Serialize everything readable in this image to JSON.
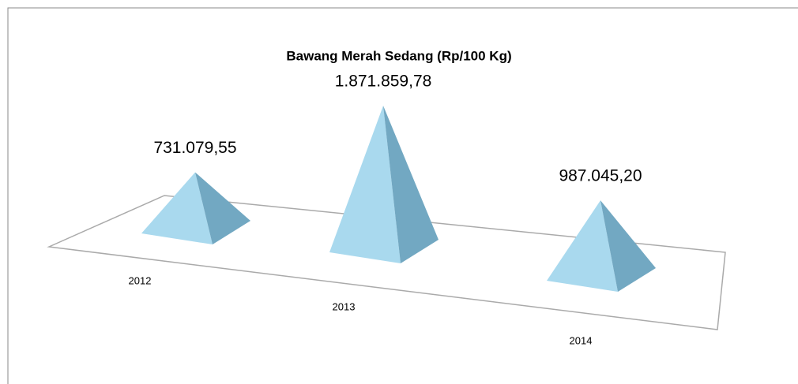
{
  "chart_data": {
    "type": "pyramid",
    "title": "Bawang Merah Sedang (Rp/100 Kg)",
    "categories": [
      "2012",
      "2013",
      "2014"
    ],
    "values": [
      731079.55,
      1871859.78,
      987045.2
    ],
    "value_labels": [
      "731.079,55",
      "1.871.859,78",
      "987.045,20"
    ],
    "color": "#a9d9ee"
  }
}
